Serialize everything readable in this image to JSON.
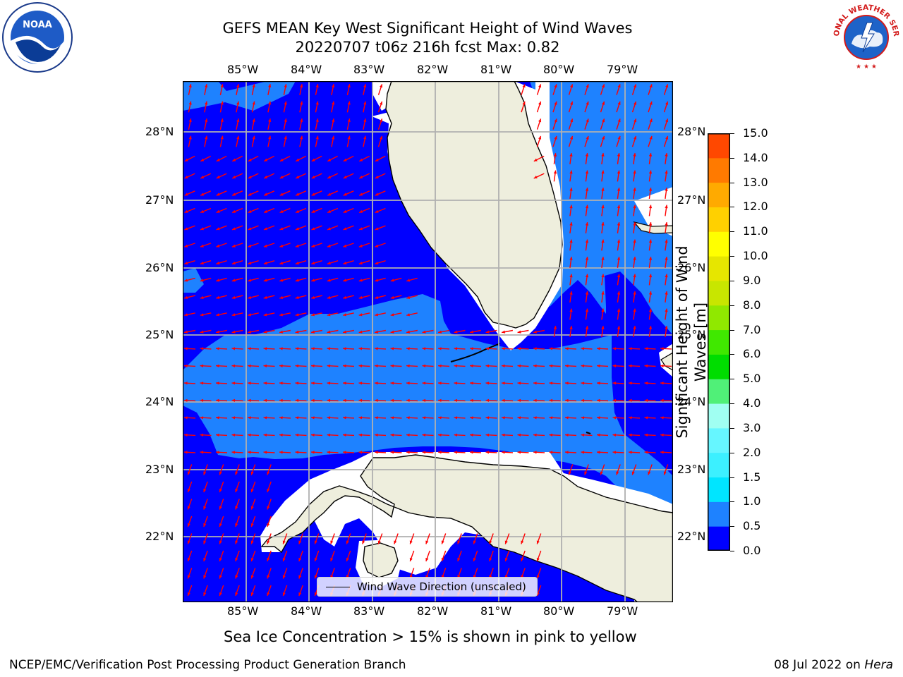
{
  "title": {
    "line1": "GEFS MEAN Key West Significant Height of Wind Waves",
    "line2": "20220707 t06z 216h fcst   Max: 0.82"
  },
  "map": {
    "lon_labels": [
      "85°W",
      "84°W",
      "83°W",
      "82°W",
      "81°W",
      "80°W",
      "79°W"
    ],
    "lat_labels": [
      "28°N",
      "27°N",
      "26°N",
      "25°N",
      "24°N",
      "23°N",
      "22°N"
    ],
    "colors": {
      "deep_blue": "#0000ff",
      "light_blue": "#1e82ff",
      "land": "#eeeedd",
      "grid": "#b0b0b0",
      "arrow": "#ff0000"
    }
  },
  "legend": {
    "label": "Wind Wave Direction (unscaled)"
  },
  "colorbar": {
    "label": "Significant Height of Wind Waves [m]",
    "label_line1": "Significant Height of Wind",
    "label_line2": "Waves [m]",
    "ticks": [
      "0.0",
      "0.5",
      "1.0",
      "1.5",
      "2.0",
      "3.0",
      "4.0",
      "5.0",
      "6.0",
      "7.0",
      "8.0",
      "9.0",
      "10.0",
      "11.0",
      "12.0",
      "13.0",
      "14.0",
      "15.0"
    ],
    "colors": [
      "#0000ff",
      "#1e82ff",
      "#00e5ff",
      "#3cf0ff",
      "#66f6ff",
      "#a0fff2",
      "#50f078",
      "#00dd00",
      "#40e800",
      "#90e800",
      "#c8e600",
      "#e6e600",
      "#ffff00",
      "#ffd000",
      "#ffaa00",
      "#ff7a00",
      "#ff4800",
      "#ff1400"
    ]
  },
  "caption": "Sea Ice Concentration > 15% is shown in pink to yellow",
  "footer": {
    "left": "NCEP/EMC/Verification Post Processing Product Generation Branch",
    "right_prefix": "08 Jul 2022 on ",
    "right_host": "Hera"
  },
  "logos": {
    "noaa": "NOAA",
    "nws_text": "NATIONAL WEATHER SERVICE"
  }
}
